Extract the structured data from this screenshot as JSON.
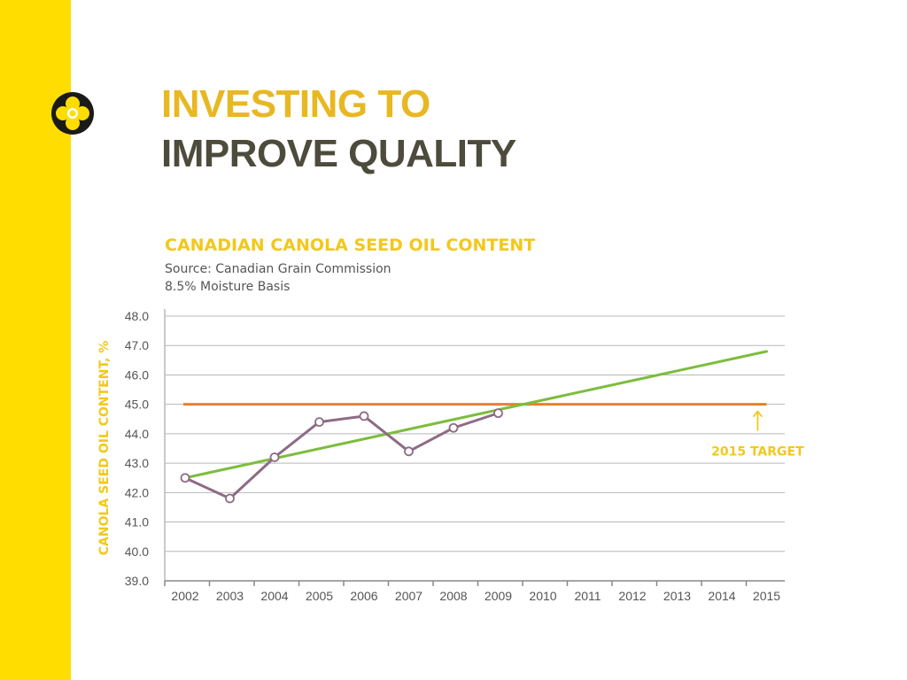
{
  "slide": {
    "title_line1": "INVESTING TO",
    "title_line2": "IMPROVE QUALITY"
  },
  "colors": {
    "sidebar": "#ffdd00",
    "title_accent": "#e8b823",
    "title_dark": "#4d4b3c",
    "chart_title": "#f2c81a",
    "actual_series": "#8e6b85",
    "trend_series": "#7cbd3e",
    "target_series": "#ef7d2c",
    "grid": "#b8b8b8",
    "axis_text": "#555555"
  },
  "icons": {
    "logo": "canola-flower-logo-icon",
    "target_arrow": "arrow-up-icon"
  },
  "chart_data": {
    "type": "line",
    "title": "CANADIAN CANOLA SEED OIL CONTENT",
    "subtitle_lines": [
      "Source: Canadian Grain Commission",
      "8.5% Moisture Basis"
    ],
    "xlabel": "",
    "ylabel": "CANOLA SEED OIL CONTENT, %",
    "categories": [
      "2002",
      "2003",
      "2004",
      "2005",
      "2006",
      "2007",
      "2008",
      "2009",
      "2010",
      "2011",
      "2012",
      "2013",
      "2014",
      "2015"
    ],
    "yticks": [
      "39.0",
      "40.0",
      "41.0",
      "42.0",
      "43.0",
      "44.0",
      "45.0",
      "46.0",
      "47.0",
      "48.0"
    ],
    "ylim": [
      39.0,
      48.0
    ],
    "grid": true,
    "legend": "none",
    "series": [
      {
        "key": "actual",
        "x": [
          "2002",
          "2003",
          "2004",
          "2005",
          "2006",
          "2007",
          "2008",
          "2009"
        ],
        "values": [
          42.5,
          41.8,
          43.2,
          44.4,
          44.6,
          43.4,
          44.2,
          44.7
        ]
      },
      {
        "key": "trend",
        "x": [
          "2002",
          "2015"
        ],
        "values": [
          42.5,
          46.8
        ]
      },
      {
        "key": "target",
        "x": [
          "2002",
          "2015"
        ],
        "values": [
          45.0,
          45.0
        ]
      }
    ],
    "annotations": [
      {
        "text": "2015 TARGET",
        "x": "2014.8",
        "y": 45.0
      }
    ]
  }
}
